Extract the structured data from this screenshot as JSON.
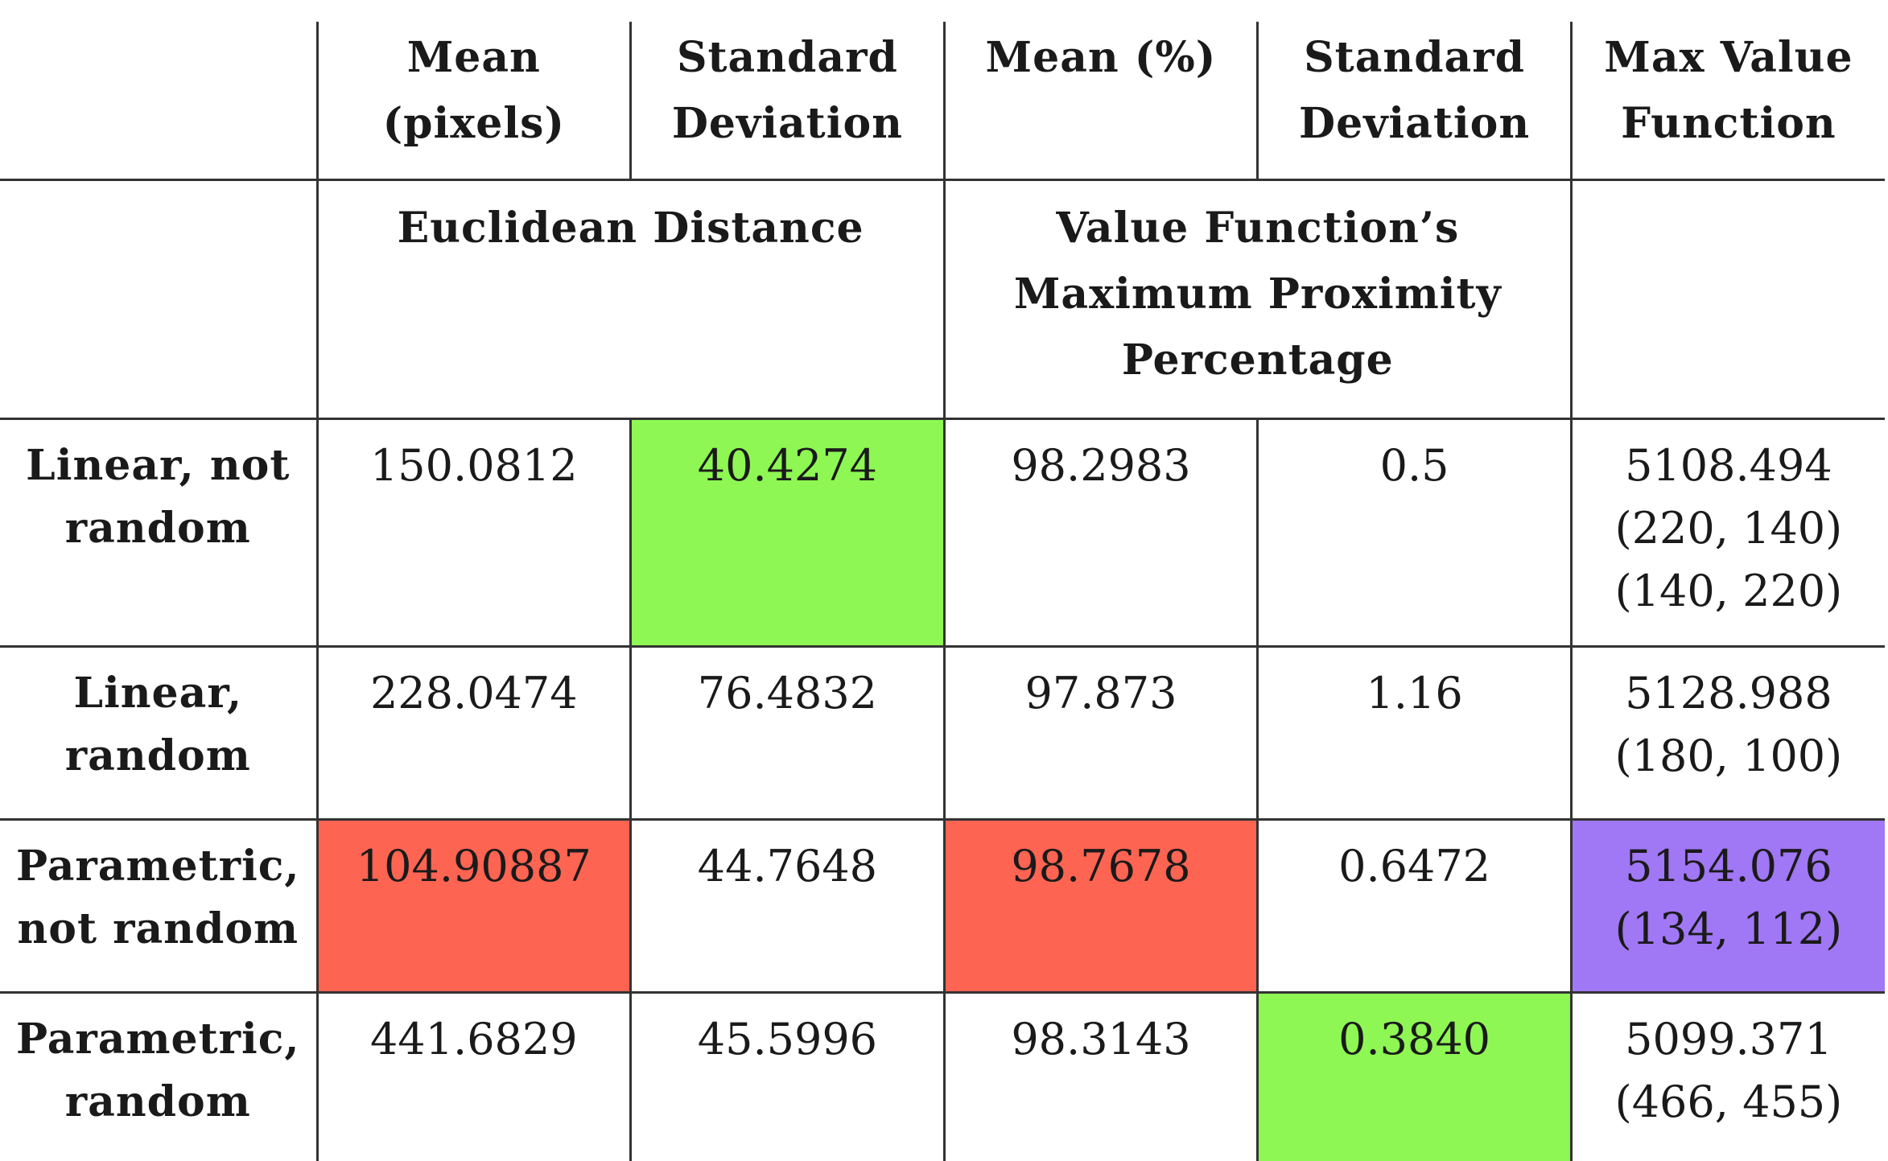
{
  "header": {
    "col1": [
      "Mean",
      "(pixels)"
    ],
    "col2": [
      "Standard",
      "Deviation"
    ],
    "col3": [
      "Mean (%)"
    ],
    "col4": [
      "Standard",
      "Deviation"
    ],
    "col5": [
      "Max Value",
      "Function"
    ]
  },
  "groups": {
    "euclidean": "Euclidean Distance",
    "value_function": [
      "Value Function’s",
      "Maximum Proximity",
      "Percentage"
    ]
  },
  "rows": [
    {
      "label": [
        "Linear, not",
        "random"
      ],
      "mean_pixels": "150.0812",
      "std_pixels": "40.4274",
      "mean_pct": "98.2983",
      "std_pct": "0.5",
      "max_value": [
        "5108.494",
        "(220, 140)",
        "(140, 220)"
      ]
    },
    {
      "label": [
        "Linear,",
        "random"
      ],
      "mean_pixels": "228.0474",
      "std_pixels": "76.4832",
      "mean_pct": "97.873",
      "std_pct": "1.16",
      "max_value": [
        "5128.988",
        "(180, 100)"
      ]
    },
    {
      "label": [
        "Parametric,",
        "not random"
      ],
      "mean_pixels": "104.90887",
      "std_pixels": "44.7648",
      "mean_pct": "98.7678",
      "std_pct": "0.6472",
      "max_value": [
        "5154.076",
        "(134, 112)"
      ]
    },
    {
      "label": [
        "Parametric,",
        "random"
      ],
      "mean_pixels": "441.6829",
      "std_pixels": "45.5996",
      "mean_pct": "98.3143",
      "std_pct": "0.3840",
      "max_value": [
        "5099.371",
        "(466, 455)"
      ]
    }
  ],
  "colors": {
    "green": "#8ef754",
    "red": "#fe6452",
    "purple": "#a077f4",
    "rule": "#333333"
  }
}
